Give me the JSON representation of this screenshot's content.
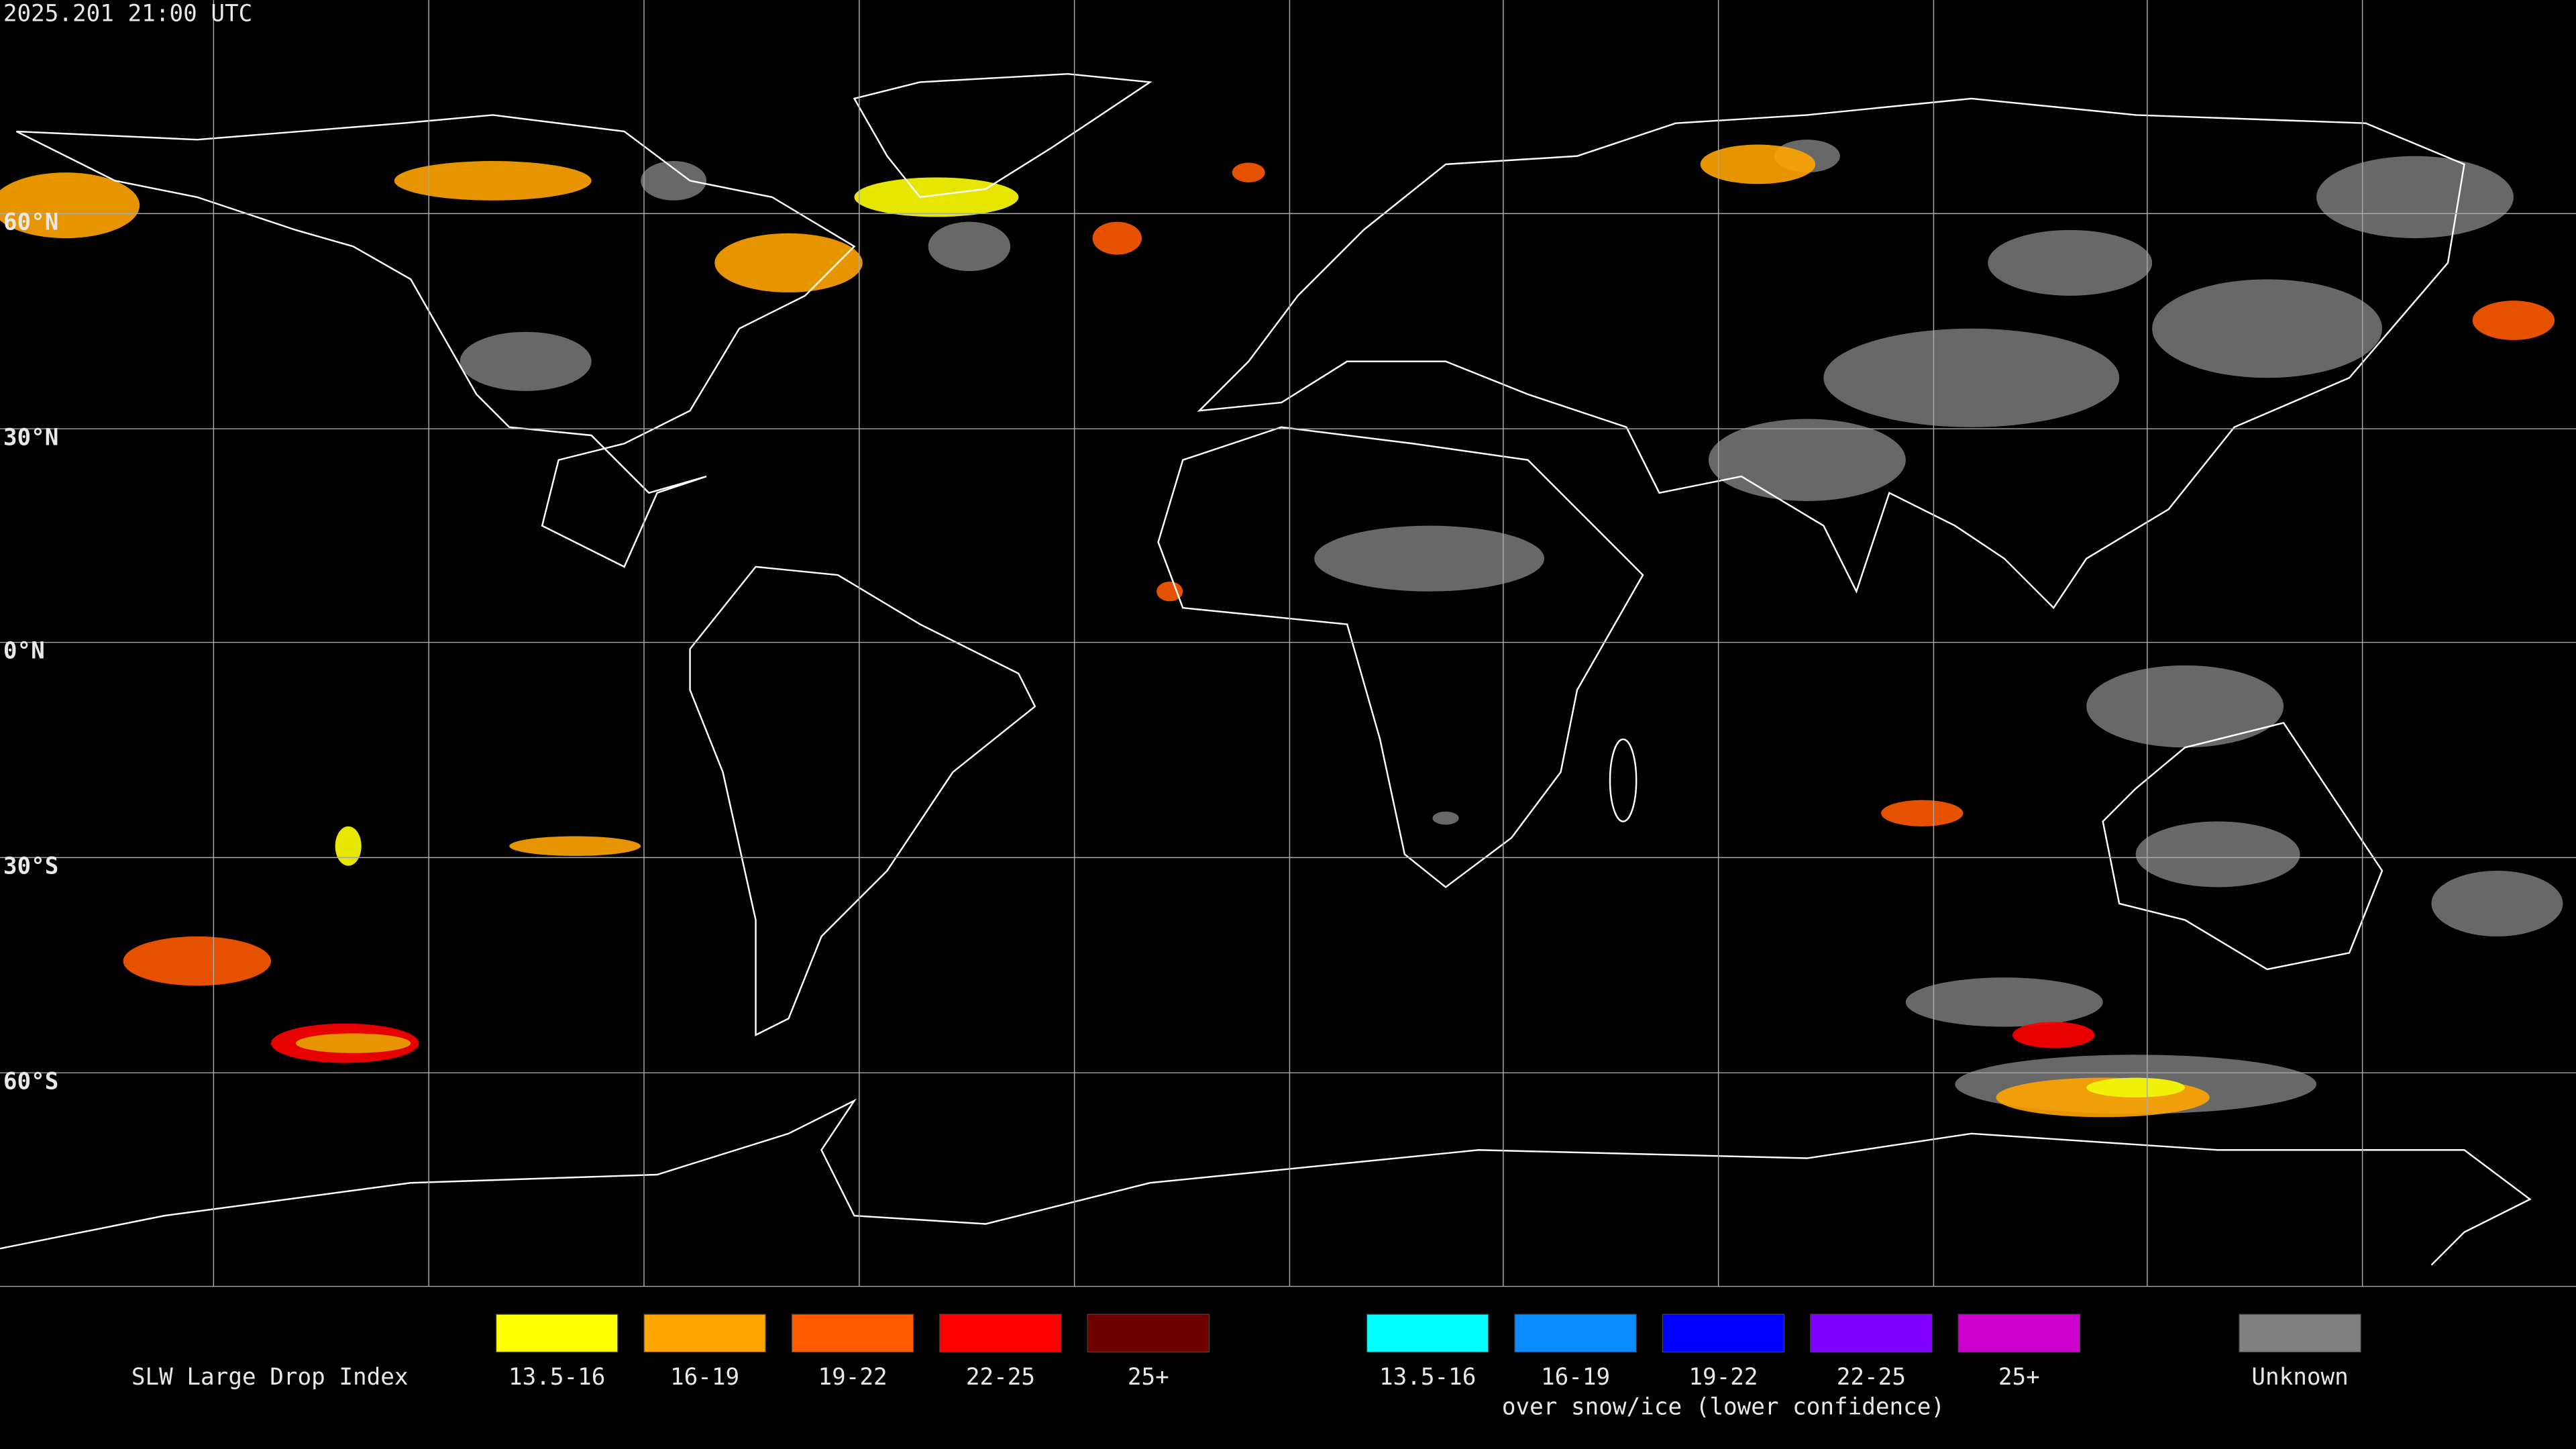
{
  "header": {
    "timestamp": "2025.201 21:00 UTC"
  },
  "map": {
    "latitude_labels": [
      "60°N",
      "30°N",
      "0°N",
      "30°S",
      "60°S"
    ]
  },
  "legend": {
    "title": "SLW Large Drop Index",
    "items": [
      {
        "label": "13.5-16",
        "color": "#ffff00"
      },
      {
        "label": "16-19",
        "color": "#ffa500"
      },
      {
        "label": "19-22",
        "color": "#ff5a00"
      },
      {
        "label": "22-25",
        "color": "#ff0000"
      },
      {
        "label": "25+",
        "color": "#6e0000"
      }
    ],
    "snow_ice_items": [
      {
        "label": "13.5-16",
        "color": "#00ffff"
      },
      {
        "label": "16-19",
        "color": "#0a8cff"
      },
      {
        "label": "19-22",
        "color": "#0000ff"
      },
      {
        "label": "22-25",
        "color": "#8000ff"
      },
      {
        "label": "25+",
        "color": "#cc00cc"
      }
    ],
    "snow_ice_note": "over snow/ice (lower confidence)",
    "unknown": {
      "label": "Unknown",
      "color": "#808080"
    }
  }
}
